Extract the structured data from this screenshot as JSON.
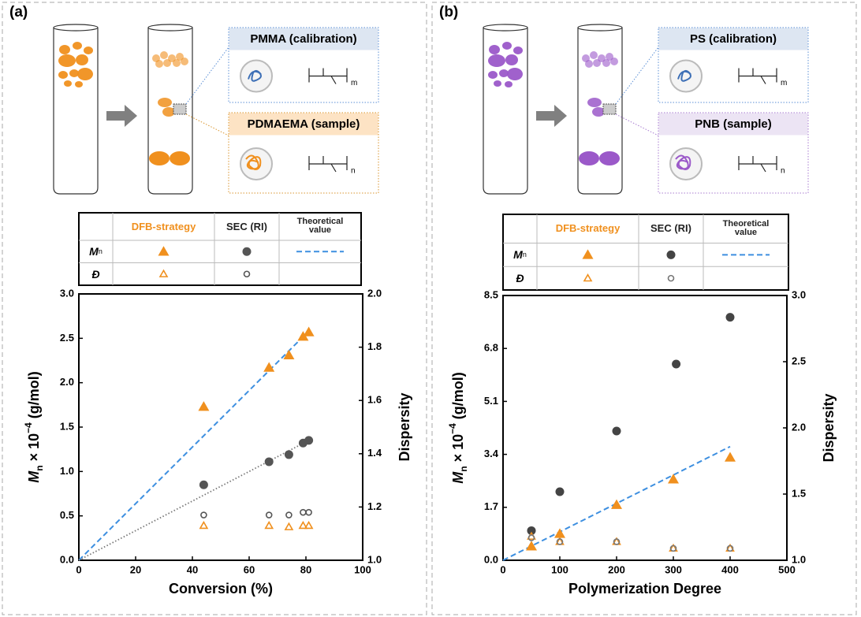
{
  "chart_data": [
    {
      "type": "scatter",
      "panel_label": "(a)",
      "schematic": {
        "calibration": "PMMA (calibration)",
        "sample": "PDMAEMA (sample)",
        "calibration_index": "m",
        "sample_index": "n",
        "color": "#f0901e",
        "calibration_fill": "#dde6f2",
        "sample_fill": "#fde3c4",
        "calibration_border": "#5b8fd6",
        "sample_border": "#d9952e"
      },
      "legend_rows": [
        [
          "M",
          "n"
        ],
        [
          "Đ"
        ]
      ],
      "xlabel": "Conversion (%)",
      "ylabel": [
        "M",
        "n",
        " × 10",
        "−4",
        " (g/mol)"
      ],
      "y2label": "Dispersity",
      "xlim": [
        0,
        100
      ],
      "xticks": [
        0,
        20,
        40,
        60,
        80,
        100
      ],
      "ylim": [
        0,
        3
      ],
      "yticks": [
        {
          "value": 0,
          "label": "0.0"
        },
        {
          "value": 0.5,
          "label": "0.5"
        },
        {
          "value": 1,
          "label": "1.0"
        },
        {
          "value": 1.5,
          "label": "1.5"
        },
        {
          "value": 2,
          "label": "2.0"
        },
        {
          "value": 2.5,
          "label": "2.5"
        },
        {
          "value": 3,
          "label": "3.0"
        }
      ],
      "y2lim": [
        1,
        2
      ],
      "y2ticks": [
        {
          "value": 1,
          "label": "1.0"
        },
        {
          "value": 1.2,
          "label": "1.2"
        },
        {
          "value": 1.4,
          "label": "1.4"
        },
        {
          "value": 1.6,
          "label": "1.6"
        },
        {
          "value": 1.8,
          "label": "1.8"
        },
        {
          "value": 2,
          "label": "2.0"
        }
      ],
      "series": [
        {
          "name": "DFB-strategy",
          "color": "#f0901e",
          "marker": "triangle",
          "filled": true,
          "x": [
            44,
            67,
            74,
            79,
            81
          ],
          "values": [
            1.73,
            2.17,
            2.31,
            2.52,
            2.57
          ]
        },
        {
          "name": "SEC (RI)",
          "color": "#555555",
          "marker": "circle",
          "filled": true,
          "x": [
            44,
            67,
            74,
            79,
            81
          ],
          "values": [
            0.85,
            1.11,
            1.19,
            1.32,
            1.35
          ]
        },
        {
          "name": "DFB-strategy",
          "color": "#f0901e",
          "marker": "triangle",
          "filled": false,
          "axis": "y2",
          "x": [
            44,
            67,
            74,
            79,
            81
          ],
          "values": [
            1.13,
            1.13,
            1.125,
            1.13,
            1.13
          ]
        },
        {
          "name": "SEC (RI)",
          "color": "#555555",
          "marker": "circle",
          "filled": false,
          "axis": "y2",
          "x": [
            44,
            67,
            74,
            79,
            81
          ],
          "values": [
            1.17,
            1.17,
            1.17,
            1.18,
            1.18
          ]
        },
        {
          "name": "Theoretical value",
          "color": "#3d8fe0",
          "line": "dashed",
          "x": [
            0,
            80
          ],
          "values": [
            0,
            2.55
          ]
        },
        {
          "color": "#777777",
          "line": "dotted",
          "x": [
            0,
            81
          ],
          "values": [
            0,
            1.35
          ]
        }
      ]
    },
    {
      "type": "scatter",
      "panel_label": "(b)",
      "schematic": {
        "calibration": "PS (calibration)",
        "sample": "PNB (sample)",
        "calibration_index": "m",
        "sample_index": "n",
        "color": "#9b59c9",
        "calibration_fill": "#dde6f2",
        "sample_fill": "#ece4f4",
        "calibration_border": "#5b8fd6",
        "sample_border": "#a87bd0"
      },
      "legend_rows": [
        [
          "M",
          "n"
        ],
        [
          "Đ"
        ]
      ],
      "xlabel": "Polymerization Degree",
      "ylabel": [
        "M",
        "n",
        " × 10",
        "−4",
        " (g/mol)"
      ],
      "y2label": "Dispersity",
      "xlim": [
        0,
        500
      ],
      "xticks": [
        0,
        100,
        200,
        300,
        400,
        500
      ],
      "ylim": [
        0,
        8.5
      ],
      "yticks": [
        {
          "value": 0,
          "label": "0.0"
        },
        1.7,
        3.4,
        5.1,
        6.8,
        8.5
      ],
      "y2lim": [
        1,
        3
      ],
      "y2ticks": [
        {
          "value": 1,
          "label": "1.0"
        },
        1.5,
        {
          "value": 2,
          "label": "2.0"
        },
        2.5,
        {
          "value": 3,
          "label": "3.0"
        }
      ],
      "series": [
        {
          "name": "DFB-strategy",
          "color": "#f0901e",
          "marker": "triangle",
          "filled": true,
          "x": [
            50,
            100,
            200,
            300,
            400
          ],
          "values": [
            0.45,
            0.85,
            1.78,
            2.6,
            3.3
          ]
        },
        {
          "name": "SEC (RI)",
          "color": "#444444",
          "marker": "circle",
          "filled": true,
          "x": [
            50,
            100,
            200,
            305,
            400
          ],
          "values": [
            0.95,
            2.2,
            4.15,
            6.3,
            7.8
          ]
        },
        {
          "name": "DFB-strategy",
          "color": "#f0901e",
          "marker": "triangle",
          "filled": false,
          "axis": "y2",
          "x": [
            50,
            100,
            200,
            300,
            400
          ],
          "values": [
            1.18,
            1.14,
            1.14,
            1.09,
            1.09
          ]
        },
        {
          "name": "SEC (RI)",
          "color": "#777777",
          "marker": "circle",
          "filled": false,
          "axis": "y2",
          "x": [
            50,
            100,
            200,
            300,
            400
          ],
          "values": [
            1.17,
            1.14,
            1.14,
            1.09,
            1.09
          ]
        },
        {
          "name": "Theoretical value",
          "color": "#3d8fe0",
          "line": "dashed",
          "x": [
            0,
            400
          ],
          "values": [
            0,
            3.65
          ]
        }
      ]
    }
  ]
}
